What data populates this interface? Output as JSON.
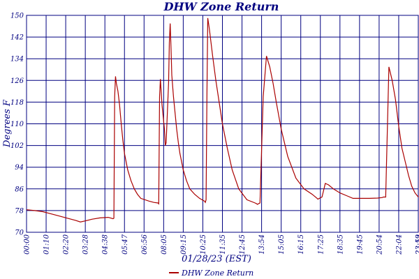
{
  "chart_data": {
    "type": "line",
    "title": "DHW Zone Return",
    "xlabel": "01/28/23 (EST)",
    "ylabel": "Degrees F",
    "ylim": [
      70,
      150
    ],
    "xlim_hours": [
      0,
      24
    ],
    "y_ticks": [
      70,
      78,
      86,
      94,
      102,
      110,
      118,
      126,
      134,
      142,
      150
    ],
    "x_tick_labels": [
      "00:00",
      "01:10",
      "02:20",
      "03:28",
      "04:38",
      "05:47",
      "06:56",
      "08:05",
      "09:15",
      "10:25",
      "11:35",
      "12:45",
      "13:54",
      "15:05",
      "16:15",
      "17:25",
      "18:35",
      "19:45",
      "20:54",
      "22:04",
      "23:13",
      "23:59"
    ],
    "grid": true,
    "legend_position": "bottom-center",
    "colors": {
      "series": "#aa0000",
      "grid": "#000080",
      "text": "#000080",
      "background": "#ffffff"
    },
    "series": [
      {
        "name": "DHW Zone Return",
        "x_hours": [
          0.0,
          0.5,
          1.0,
          1.5,
          2.0,
          2.5,
          3.0,
          3.3,
          3.6,
          4.0,
          4.5,
          5.0,
          5.3,
          5.35,
          5.4,
          5.45,
          5.5,
          5.6,
          5.7,
          5.8,
          5.9,
          6.0,
          6.2,
          6.4,
          6.6,
          6.8,
          7.0,
          7.5,
          7.8,
          8.05,
          8.1,
          8.15,
          8.2,
          8.3,
          8.45,
          8.5,
          8.55,
          8.7,
          8.75,
          8.8,
          8.85,
          8.9,
          9.0,
          9.1,
          9.2,
          9.3,
          9.4,
          9.6,
          9.8,
          10.0,
          10.3,
          10.6,
          10.9,
          10.95,
          11.0,
          11.05,
          11.1,
          11.2,
          11.4,
          11.6,
          11.8,
          12.0,
          12.3,
          12.6,
          13.0,
          13.5,
          14.0,
          14.1,
          14.15,
          14.2,
          14.3,
          14.5,
          14.7,
          14.9,
          15.1,
          15.3,
          15.6,
          16.0,
          16.5,
          17.0,
          17.5,
          17.8,
          17.85,
          17.9,
          18.1,
          18.3,
          18.5,
          18.8,
          19.2,
          19.6,
          20.0,
          20.5,
          21.0,
          21.5,
          21.8,
          21.85,
          21.9,
          22.0,
          22.2,
          22.4,
          22.6,
          22.8,
          23.0,
          23.2,
          23.4,
          23.6,
          23.8,
          24.0
        ],
        "y": [
          78.3,
          78.0,
          77.6,
          76.8,
          76.0,
          75.2,
          74.4,
          73.8,
          74.2,
          74.8,
          75.3,
          75.5,
          75.0,
          75.2,
          120.0,
          127.5,
          125.0,
          122.0,
          117.0,
          110.0,
          104.0,
          99.0,
          93.0,
          89.0,
          86.0,
          84.0,
          82.5,
          81.5,
          81.0,
          80.8,
          80.5,
          120.0,
          126.5,
          117.0,
          108.0,
          102.0,
          103.0,
          125.0,
          140.0,
          147.0,
          138.0,
          128.0,
          120.0,
          114.0,
          108.0,
          103.0,
          99.0,
          93.0,
          89.0,
          86.0,
          84.0,
          82.5,
          81.5,
          81.0,
          82.0,
          120.0,
          149.0,
          145.0,
          135.0,
          126.0,
          118.0,
          110.0,
          101.0,
          93.0,
          86.0,
          82.0,
          80.8,
          80.5,
          80.3,
          80.5,
          80.8,
          120.0,
          135.0,
          131.0,
          125.0,
          118.0,
          108.0,
          98.0,
          90.0,
          86.0,
          84.0,
          82.5,
          82.2,
          82.4,
          83.0,
          88.0,
          87.5,
          86.0,
          84.5,
          83.5,
          82.5,
          82.5,
          82.5,
          82.6,
          82.8,
          83.0,
          83.0,
          83.0,
          131.0,
          126.0,
          119.0,
          109.0,
          101.0,
          96.0,
          91.0,
          87.0,
          84.5,
          83.0
        ]
      }
    ]
  }
}
